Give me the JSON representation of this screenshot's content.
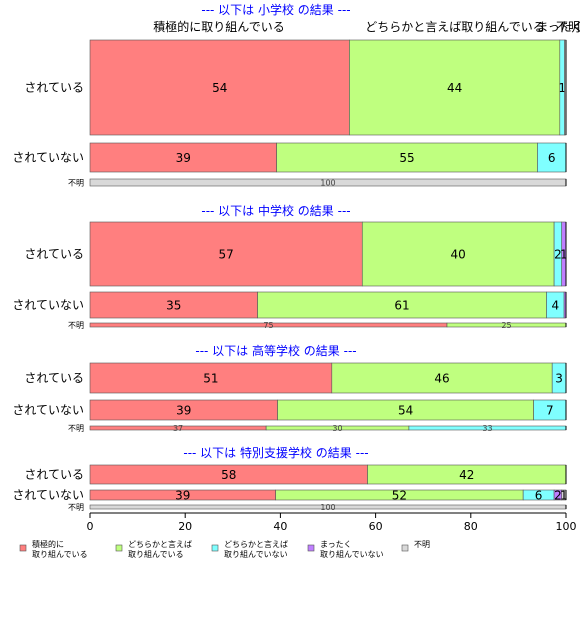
{
  "figure": {
    "col_header_1": "積極的に取り組んでいる",
    "col_header_2": "どちらかと言えば取り組んでいる",
    "col_header_3": "まったく",
    "col_header_4": "不明"
  },
  "chart_data": {
    "type": "bar",
    "orientation": "horizontal",
    "stacked": "percent",
    "xlim": [
      0,
      100
    ],
    "x_ticks": [
      0,
      20,
      40,
      60,
      80,
      100
    ],
    "legend_position": "bottom",
    "categories_legend": [
      {
        "name": "積極的に\n取り組んでいる",
        "color": "#ff7f7f"
      },
      {
        "name": "どちらかと言えば\n取り組んでいる",
        "color": "#bfff7f"
      },
      {
        "name": "どちらかと言えば\n取り組んでいない",
        "color": "#7fffff"
      },
      {
        "name": "まったく\n取り組んでいない",
        "color": "#bf7fff"
      },
      {
        "name": "不明",
        "color": "#d9d9d9"
      }
    ],
    "panels": [
      {
        "title": "--- 以下は 小学校 の結果 ---",
        "rows": [
          {
            "label": "されている",
            "values": [
              54.5,
              44.2,
              1.0,
              0.0,
              0.3
            ],
            "labels": [
              "54",
              "44",
              "1",
              "",
              ""
            ]
          },
          {
            "label": "されていない",
            "values": [
              39.2,
              54.8,
              6.0,
              0.0,
              0.0
            ],
            "labels": [
              "39",
              "55",
              "6",
              "",
              ""
            ]
          },
          {
            "label": "不明",
            "values": [
              0,
              0,
              0,
              0,
              100
            ],
            "labels": [
              "",
              "",
              "",
              "",
              "100"
            ]
          }
        ]
      },
      {
        "title": "--- 以下は 中学校 の結果 ---",
        "rows": [
          {
            "label": "されている",
            "values": [
              57.2,
              40.3,
              1.6,
              0.9,
              0.0
            ],
            "labels": [
              "57",
              "40",
              "2",
              "1",
              ""
            ]
          },
          {
            "label": "されていない",
            "values": [
              35.2,
              60.7,
              3.7,
              0.4,
              0.0
            ],
            "labels": [
              "35",
              "61",
              "4",
              "",
              ""
            ]
          },
          {
            "label": "不明",
            "values": [
              75,
              25,
              0,
              0,
              0
            ],
            "labels": [
              "75",
              "25",
              "",
              "",
              ""
            ]
          }
        ]
      },
      {
        "title": "--- 以下は 高等学校 の結果 ---",
        "rows": [
          {
            "label": "されている",
            "values": [
              50.8,
              46.3,
              2.9,
              0.0,
              0.0
            ],
            "labels": [
              "51",
              "46",
              "3",
              "",
              ""
            ]
          },
          {
            "label": "されていない",
            "values": [
              39.4,
              53.8,
              6.8,
              0.0,
              0.0
            ],
            "labels": [
              "39",
              "54",
              "7",
              "",
              ""
            ]
          },
          {
            "label": "不明",
            "values": [
              37,
              30,
              33,
              0,
              0
            ],
            "labels": [
              "37",
              "30",
              "33",
              "",
              ""
            ]
          }
        ]
      },
      {
        "title": "--- 以下は 特別支援学校 の結果 ---",
        "rows": [
          {
            "label": "されている",
            "values": [
              58.3,
              41.7,
              0.0,
              0.0,
              0.0
            ],
            "labels": [
              "58",
              "42",
              "",
              "",
              ""
            ]
          },
          {
            "label": "されていない",
            "values": [
              39.0,
              52.0,
              6.5,
              1.6,
              0.9
            ],
            "labels": [
              "39",
              "52",
              "6",
              "2",
              "1"
            ]
          },
          {
            "label": "不明",
            "values": [
              0,
              0,
              0,
              0,
              100
            ],
            "labels": [
              "",
              "",
              "",
              "",
              "100"
            ]
          }
        ]
      }
    ]
  }
}
